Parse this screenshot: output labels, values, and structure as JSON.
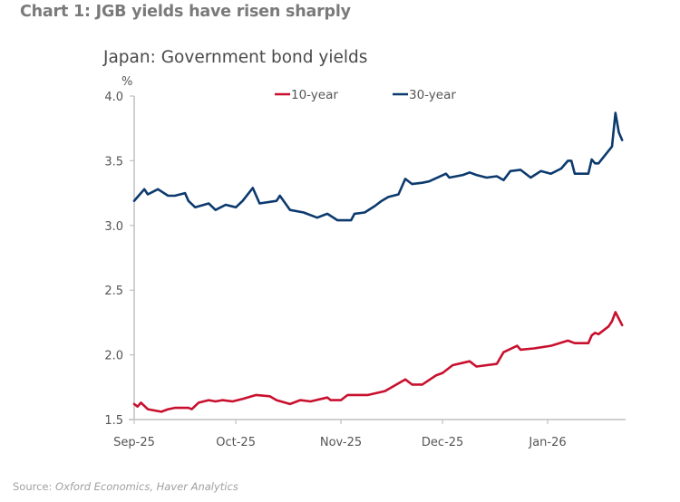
{
  "page": {
    "heading": "Chart 1: JGB yields have risen sharply",
    "source_prefix": "Source: ",
    "source_text": "Oxford Economics, Haver Analytics"
  },
  "chart_data": {
    "type": "line",
    "title": "Japan: Government bond yields",
    "xlabel": "",
    "ylabel": "%",
    "ylim": [
      1.5,
      4.0
    ],
    "yticks": [
      1.5,
      2.0,
      2.5,
      3.0,
      3.5,
      4.0
    ],
    "ytick_labels": [
      "1.5",
      "2.0",
      "2.5",
      "3.0",
      "3.5",
      "4.0"
    ],
    "x_unit": "days since 2025-09-01",
    "xlim": [
      0,
      145
    ],
    "xticks": [
      0,
      30,
      61,
      91,
      122
    ],
    "xtick_labels": [
      "Sep-25",
      "Oct-25",
      "Nov-25",
      "Dec-25",
      "Jan-26"
    ],
    "grid": false,
    "legend_position": "top-center",
    "series": [
      {
        "name": "10-year",
        "color": "#c8102e",
        "x": [
          0,
          1,
          2,
          4,
          8,
          10,
          12,
          16,
          17,
          19,
          22,
          24,
          26,
          29,
          32,
          36,
          40,
          42,
          46,
          49,
          52,
          57,
          58,
          61,
          63,
          66,
          69,
          74,
          80,
          82,
          85,
          89,
          91,
          94,
          99,
          101,
          107,
          109,
          113,
          114,
          118,
          123,
          128,
          130,
          131,
          134,
          135,
          136,
          137,
          140,
          141,
          142,
          144
        ],
        "values": [
          1.62,
          1.6,
          1.63,
          1.58,
          1.56,
          1.58,
          1.59,
          1.59,
          1.58,
          1.63,
          1.65,
          1.64,
          1.65,
          1.64,
          1.66,
          1.69,
          1.68,
          1.65,
          1.62,
          1.65,
          1.64,
          1.67,
          1.65,
          1.65,
          1.69,
          1.69,
          1.69,
          1.72,
          1.81,
          1.77,
          1.77,
          1.84,
          1.86,
          1.92,
          1.95,
          1.91,
          1.93,
          2.02,
          2.07,
          2.04,
          2.05,
          2.07,
          2.11,
          2.09,
          2.09,
          2.09,
          2.15,
          2.17,
          2.16,
          2.22,
          2.26,
          2.33,
          2.23
        ]
      },
      {
        "name": "30-year",
        "color": "#0c3a6e",
        "x": [
          0,
          1,
          3,
          4,
          7,
          10,
          12,
          15,
          16,
          18,
          22,
          24,
          27,
          30,
          32,
          35,
          37,
          42,
          43,
          46,
          50,
          54,
          57,
          60,
          64,
          65,
          68,
          71,
          73,
          75,
          78,
          80,
          82,
          85,
          87,
          92,
          93,
          97,
          99,
          101,
          104,
          107,
          109,
          111,
          114,
          117,
          120,
          123,
          126,
          128,
          129,
          130,
          134,
          135,
          136,
          137,
          141,
          142,
          143,
          144
        ],
        "values": [
          3.19,
          3.22,
          3.28,
          3.24,
          3.28,
          3.23,
          3.23,
          3.25,
          3.19,
          3.14,
          3.17,
          3.12,
          3.16,
          3.14,
          3.19,
          3.29,
          3.17,
          3.19,
          3.23,
          3.12,
          3.1,
          3.06,
          3.09,
          3.04,
          3.04,
          3.09,
          3.1,
          3.15,
          3.19,
          3.22,
          3.24,
          3.36,
          3.32,
          3.33,
          3.34,
          3.4,
          3.37,
          3.39,
          3.41,
          3.39,
          3.37,
          3.38,
          3.35,
          3.42,
          3.43,
          3.37,
          3.42,
          3.4,
          3.44,
          3.5,
          3.5,
          3.4,
          3.4,
          3.51,
          3.48,
          3.48,
          3.61,
          3.87,
          3.72,
          3.66
        ]
      }
    ]
  }
}
